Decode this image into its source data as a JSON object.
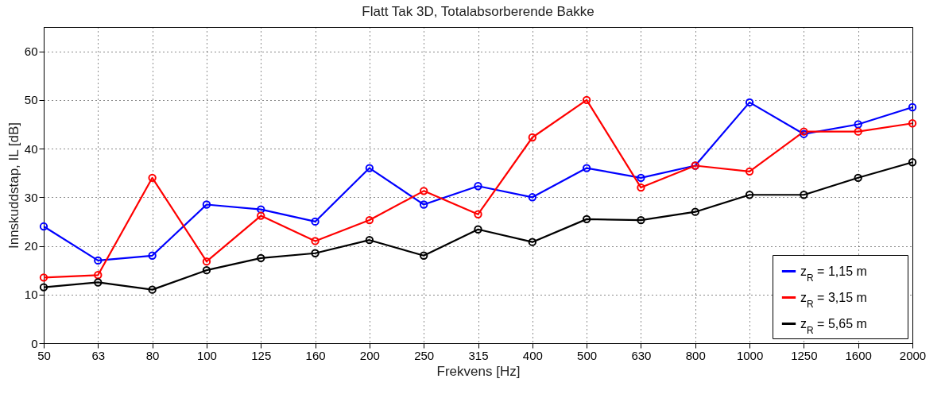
{
  "chart_data": {
    "type": "line",
    "title": "Flatt Tak 3D, Totalabsorberende Bakke",
    "xlabel": "Frekvens [Hz]",
    "ylabel": "Innskuddstap, IL [dB]",
    "categories": [
      "50",
      "63",
      "80",
      "100",
      "125",
      "160",
      "200",
      "250",
      "315",
      "400",
      "500",
      "630",
      "800",
      "1000",
      "1250",
      "1600",
      "2000"
    ],
    "series": [
      {
        "name": "z$_{R}$ = 1,15 m",
        "color": "#0000ff",
        "values": [
          24,
          17,
          18,
          28.5,
          27.5,
          25,
          36,
          28.5,
          32.3,
          30,
          36,
          34,
          36.5,
          49.5,
          43,
          45,
          48.5
        ]
      },
      {
        "name": "z$_{R}$ = 3,15 m",
        "color": "#ff0000",
        "values": [
          13.5,
          14,
          34,
          16.8,
          26.2,
          21,
          25.3,
          31.3,
          26.5,
          42.3,
          50,
          32,
          36.5,
          35.3,
          43.5,
          43.5,
          45.2
        ]
      },
      {
        "name": "z$_{R}$ = 5,65 m",
        "color": "#000000",
        "values": [
          11.5,
          12.5,
          11,
          15,
          17.5,
          18.5,
          21.2,
          18,
          23.4,
          20.8,
          25.5,
          25.3,
          27,
          30.5,
          30.5,
          34,
          37.2
        ]
      }
    ],
    "ylim": [
      0,
      65
    ],
    "yticks": [
      0,
      10,
      20,
      30,
      40,
      50,
      60
    ],
    "grid": true,
    "legend": "bottom right",
    "marker": "circle",
    "line_style": "solid"
  }
}
